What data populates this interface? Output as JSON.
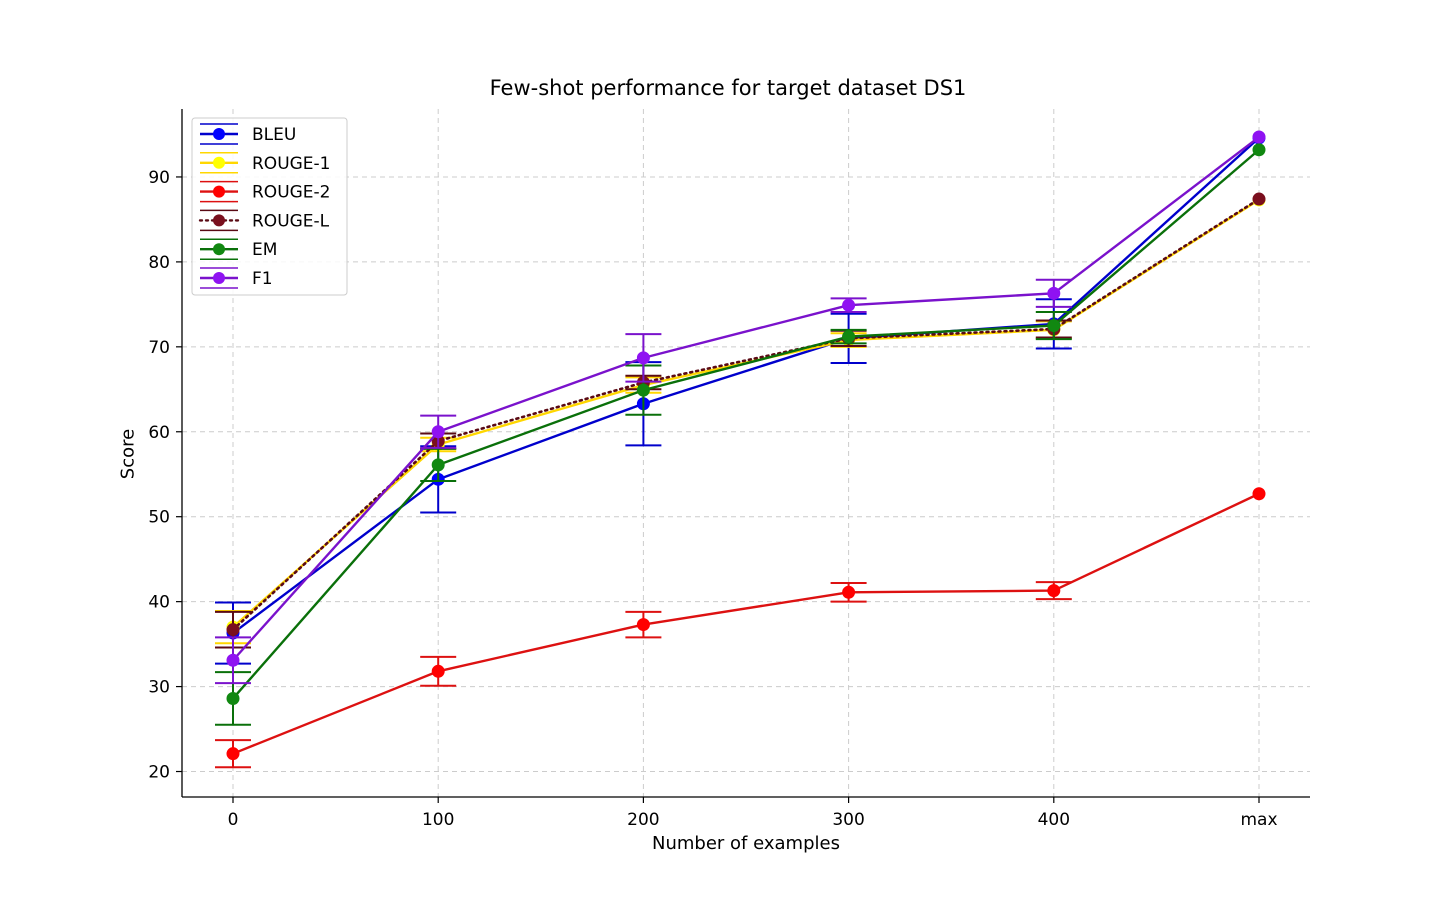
{
  "chart_data": {
    "type": "line",
    "title": "Few-shot performance for target dataset DS1",
    "xlabel": "Number of examples",
    "ylabel": "Score",
    "categories": [
      "0",
      "100",
      "200",
      "300",
      "400",
      "max"
    ],
    "ylim": [
      17,
      98
    ],
    "yticks": [
      20,
      30,
      40,
      50,
      60,
      70,
      80,
      90
    ],
    "grid": true,
    "legend_position": "top-left",
    "series": [
      {
        "name": "BLEU",
        "color": "#0000ff",
        "line_color": "#0000cc",
        "dash": "solid",
        "values": [
          36.3,
          54.4,
          63.3,
          71.0,
          72.7,
          94.6
        ],
        "errors": [
          3.6,
          3.9,
          4.9,
          2.9,
          2.9,
          0
        ]
      },
      {
        "name": "ROUGE-1",
        "color": "#ffff00",
        "line_color": "#ffd700",
        "dash": "solid",
        "values": [
          37.0,
          58.5,
          65.5,
          70.8,
          72.0,
          87.3
        ],
        "errors": [
          1.9,
          0.8,
          0.9,
          0.8,
          1.0,
          0
        ]
      },
      {
        "name": "ROUGE-2",
        "color": "#ff0000",
        "line_color": "#dd1111",
        "dash": "solid",
        "values": [
          22.1,
          31.8,
          37.3,
          41.1,
          41.3,
          52.7
        ],
        "errors": [
          1.6,
          1.7,
          1.5,
          1.1,
          1.0,
          0
        ]
      },
      {
        "name": "ROUGE-L",
        "color": "#7a0f1e",
        "line_color": "#5a0a14",
        "dash": "dotted",
        "values": [
          36.7,
          58.9,
          65.8,
          71.0,
          72.1,
          87.4
        ],
        "errors": [
          2.1,
          0.9,
          0.8,
          0.9,
          1.0,
          0
        ]
      },
      {
        "name": "EM",
        "color": "#118811",
        "line_color": "#0a700a",
        "dash": "solid",
        "values": [
          28.6,
          56.1,
          64.9,
          71.2,
          72.5,
          93.2
        ],
        "errors": [
          3.1,
          1.9,
          2.9,
          0.8,
          1.6,
          0
        ]
      },
      {
        "name": "F1",
        "color": "#8f12f2",
        "line_color": "#7a12cc",
        "dash": "solid",
        "values": [
          33.1,
          60.0,
          68.7,
          74.9,
          76.3,
          94.7
        ],
        "errors": [
          2.7,
          1.9,
          2.8,
          0.8,
          1.6,
          0
        ]
      }
    ]
  }
}
